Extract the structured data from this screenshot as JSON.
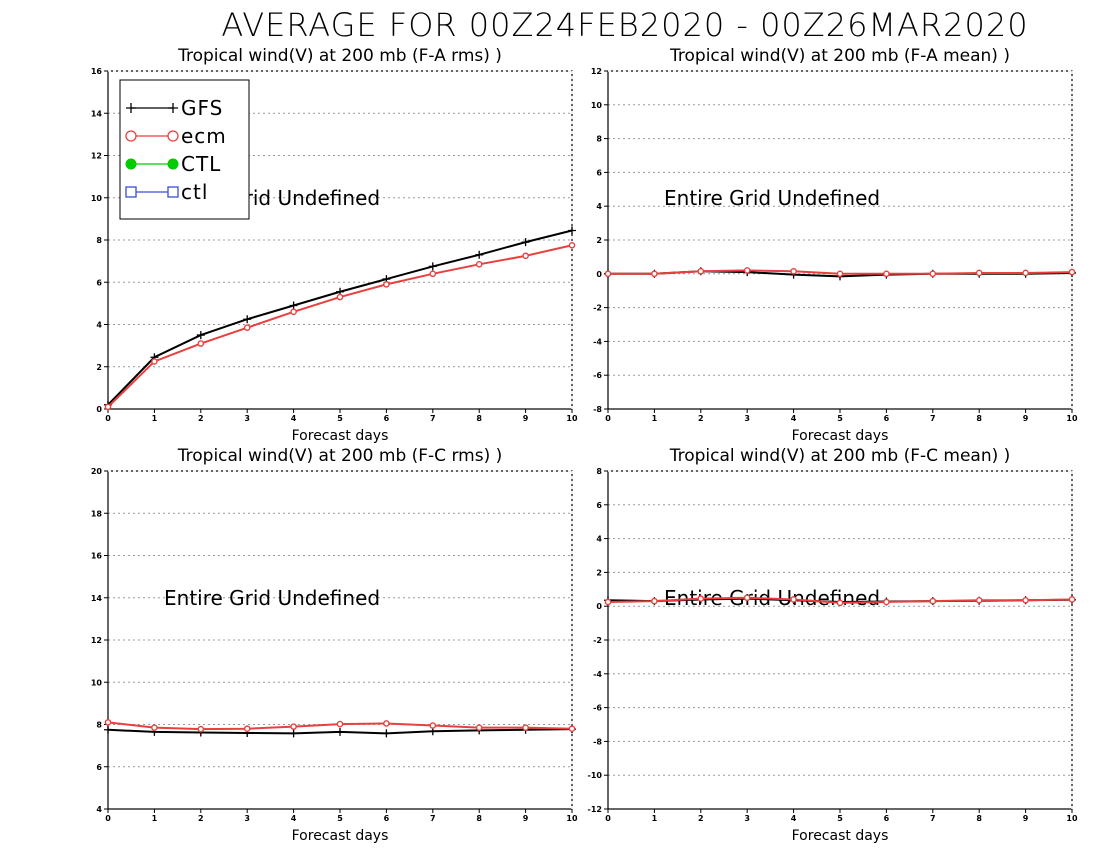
{
  "figure": {
    "title": "AVERAGE FOR 00Z24FEB2020 - 00Z26MAR2020"
  },
  "colors": {
    "GFS": "#000000",
    "ecm": "#e8403f",
    "CTL": "#00cc00",
    "ctl": "#3a4fd8",
    "grid": "#9a9a9a"
  },
  "legend": {
    "placement": "top-left of first panel",
    "entries": [
      {
        "name": "GFS",
        "marker": "plus",
        "color": "#000000"
      },
      {
        "name": "ecm",
        "marker": "open-circle",
        "color": "#e8403f"
      },
      {
        "name": "CTL",
        "marker": "filled-circle",
        "color": "#00cc00"
      },
      {
        "name": "ctl",
        "marker": "open-square",
        "color": "#3a4fd8"
      }
    ]
  },
  "chart_data": [
    {
      "type": "line",
      "title": "Tropical wind(V) at 200 mb (F-A rms) )",
      "xlabel": "Forecast days",
      "ylabel": "",
      "xlim": [
        0,
        10
      ],
      "ylim": [
        0,
        16
      ],
      "xticks": [
        0,
        1,
        2,
        3,
        4,
        5,
        6,
        7,
        8,
        9,
        10
      ],
      "yticks": [
        0,
        2,
        4,
        6,
        8,
        10,
        12,
        14,
        16
      ],
      "grid": true,
      "annotation": "Entire Grid Undefined",
      "series": [
        {
          "name": "GFS",
          "x": [
            0,
            1,
            2,
            3,
            4,
            5,
            6,
            7,
            8,
            9,
            10
          ],
          "values": [
            0.2,
            2.45,
            3.5,
            4.25,
            4.9,
            5.55,
            6.15,
            6.75,
            7.3,
            7.9,
            8.45
          ]
        },
        {
          "name": "ecm",
          "x": [
            0,
            1,
            2,
            3,
            4,
            5,
            6,
            7,
            8,
            9,
            10
          ],
          "values": [
            0.1,
            2.25,
            3.1,
            3.85,
            4.6,
            5.3,
            5.9,
            6.4,
            6.85,
            7.25,
            7.75
          ]
        }
      ]
    },
    {
      "type": "line",
      "title": "Tropical wind(V) at 200 mb (F-A mean) )",
      "xlabel": "Forecast days",
      "ylabel": "",
      "xlim": [
        0,
        10
      ],
      "ylim": [
        -8,
        12
      ],
      "xticks": [
        0,
        1,
        2,
        3,
        4,
        5,
        6,
        7,
        8,
        9,
        10
      ],
      "yticks": [
        -8,
        -6,
        -4,
        -2,
        0,
        2,
        4,
        6,
        8,
        10,
        12
      ],
      "grid": true,
      "annotation": "Entire Grid Undefined",
      "series": [
        {
          "name": "GFS",
          "x": [
            0,
            1,
            2,
            3,
            4,
            5,
            6,
            7,
            8,
            9,
            10
          ],
          "values": [
            0,
            0,
            0.15,
            0.1,
            -0.05,
            -0.15,
            -0.05,
            0,
            0,
            0,
            0.05
          ]
        },
        {
          "name": "ecm",
          "x": [
            0,
            1,
            2,
            3,
            4,
            5,
            6,
            7,
            8,
            9,
            10
          ],
          "values": [
            0,
            0,
            0.15,
            0.2,
            0.15,
            0,
            0,
            0,
            0.05,
            0.05,
            0.1
          ]
        }
      ]
    },
    {
      "type": "line",
      "title": "Tropical wind(V) at 200 mb (F-C rms) )",
      "xlabel": "Forecast days",
      "ylabel": "",
      "xlim": [
        0,
        10
      ],
      "ylim": [
        4,
        20
      ],
      "xticks": [
        0,
        1,
        2,
        3,
        4,
        5,
        6,
        7,
        8,
        9,
        10
      ],
      "yticks": [
        4,
        6,
        8,
        10,
        12,
        14,
        16,
        18,
        20
      ],
      "grid": true,
      "annotation": "Entire Grid Undefined",
      "series": [
        {
          "name": "GFS",
          "x": [
            0,
            1,
            2,
            3,
            4,
            5,
            6,
            7,
            8,
            9,
            10
          ],
          "values": [
            7.75,
            7.65,
            7.62,
            7.6,
            7.58,
            7.65,
            7.58,
            7.68,
            7.72,
            7.75,
            7.78
          ]
        },
        {
          "name": "ecm",
          "x": [
            0,
            1,
            2,
            3,
            4,
            5,
            6,
            7,
            8,
            9,
            10
          ],
          "values": [
            8.1,
            7.85,
            7.78,
            7.8,
            7.9,
            8.02,
            8.05,
            7.95,
            7.85,
            7.85,
            7.8
          ]
        }
      ]
    },
    {
      "type": "line",
      "title": "Tropical wind(V) at 200 mb (F-C mean) )",
      "xlabel": "Forecast days",
      "ylabel": "",
      "xlim": [
        0,
        10
      ],
      "ylim": [
        -12,
        8
      ],
      "xticks": [
        0,
        1,
        2,
        3,
        4,
        5,
        6,
        7,
        8,
        9,
        10
      ],
      "yticks": [
        -12,
        -10,
        -8,
        -6,
        -4,
        -2,
        0,
        2,
        4,
        6,
        8
      ],
      "grid": true,
      "annotation": "Entire Grid Undefined",
      "series": [
        {
          "name": "GFS",
          "x": [
            0,
            1,
            2,
            3,
            4,
            5,
            6,
            7,
            8,
            9,
            10
          ],
          "values": [
            0.35,
            0.3,
            0.4,
            0.45,
            0.35,
            0.25,
            0.28,
            0.3,
            0.32,
            0.35,
            0.38
          ]
        },
        {
          "name": "ecm",
          "x": [
            0,
            1,
            2,
            3,
            4,
            5,
            6,
            7,
            8,
            9,
            10
          ],
          "values": [
            0.25,
            0.3,
            0.45,
            0.5,
            0.4,
            0.2,
            0.25,
            0.3,
            0.35,
            0.35,
            0.4
          ]
        }
      ]
    }
  ]
}
